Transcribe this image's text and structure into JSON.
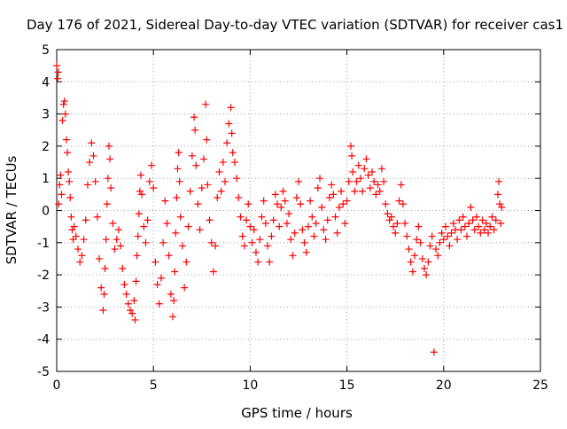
{
  "chart_data": {
    "type": "scatter",
    "title": "Day 176 of 2021, Sidereal Day-to-day VTEC variation (SDTVAR) for receiver cas1",
    "xlabel": "GPS time / hours",
    "ylabel": "SDTVAR / TECUs",
    "xlim": [
      0,
      25
    ],
    "ylim": [
      -5,
      5
    ],
    "x_ticks": [
      0,
      5,
      10,
      15,
      20,
      25
    ],
    "x_tick_labels": [
      "0",
      "5",
      "10",
      "15",
      "20",
      "25"
    ],
    "y_ticks": [
      -5,
      -4,
      -3,
      -2,
      -1,
      0,
      1,
      2,
      3,
      4,
      5
    ],
    "y_tick_labels": [
      "-5",
      "-4",
      "-3",
      "-2",
      "-1",
      "0",
      "1",
      "2",
      "3",
      "4",
      "5"
    ],
    "grid": true,
    "marker": "+",
    "marker_color": "#ff0000",
    "series": [
      {
        "name": "SDTVAR",
        "points": [
          [
            0.0,
            4.5
          ],
          [
            0.05,
            4.1
          ],
          [
            0.08,
            4.3
          ],
          [
            0.1,
            0.2
          ],
          [
            0.15,
            0.8
          ],
          [
            0.2,
            1.1
          ],
          [
            0.25,
            0.5
          ],
          [
            0.3,
            2.8
          ],
          [
            0.35,
            3.3
          ],
          [
            0.4,
            3.4
          ],
          [
            0.45,
            3.0
          ],
          [
            0.5,
            2.2
          ],
          [
            0.55,
            1.8
          ],
          [
            0.6,
            1.2
          ],
          [
            0.65,
            0.9
          ],
          [
            0.7,
            0.4
          ],
          [
            0.75,
            -0.2
          ],
          [
            0.8,
            -0.6
          ],
          [
            0.85,
            -0.9
          ],
          [
            0.9,
            -0.5
          ],
          [
            1.0,
            -0.8
          ],
          [
            1.1,
            -1.2
          ],
          [
            1.2,
            -1.6
          ],
          [
            1.3,
            -1.4
          ],
          [
            1.4,
            -0.9
          ],
          [
            1.5,
            -0.3
          ],
          [
            1.6,
            0.8
          ],
          [
            1.7,
            1.5
          ],
          [
            1.8,
            2.1
          ],
          [
            1.9,
            1.7
          ],
          [
            2.0,
            0.9
          ],
          [
            2.1,
            -0.2
          ],
          [
            2.2,
            -1.5
          ],
          [
            2.3,
            -2.4
          ],
          [
            2.4,
            -3.1
          ],
          [
            2.45,
            -2.6
          ],
          [
            2.5,
            -1.8
          ],
          [
            2.55,
            -0.9
          ],
          [
            2.6,
            0.2
          ],
          [
            2.65,
            1.0
          ],
          [
            2.7,
            2.0
          ],
          [
            2.75,
            1.6
          ],
          [
            2.8,
            0.7
          ],
          [
            2.9,
            -0.4
          ],
          [
            3.0,
            -1.2
          ],
          [
            3.1,
            -0.9
          ],
          [
            3.2,
            -0.6
          ],
          [
            3.3,
            -1.1
          ],
          [
            3.4,
            -1.8
          ],
          [
            3.5,
            -2.3
          ],
          [
            3.6,
            -2.6
          ],
          [
            3.7,
            -2.9
          ],
          [
            3.8,
            -3.1
          ],
          [
            3.9,
            -3.2
          ],
          [
            4.0,
            -2.8
          ],
          [
            4.05,
            -3.4
          ],
          [
            4.1,
            -2.2
          ],
          [
            4.15,
            -1.4
          ],
          [
            4.2,
            -0.8
          ],
          [
            4.25,
            -0.1
          ],
          [
            4.3,
            0.6
          ],
          [
            4.35,
            1.1
          ],
          [
            4.4,
            0.5
          ],
          [
            4.5,
            -0.5
          ],
          [
            4.6,
            -1.0
          ],
          [
            4.7,
            -0.3
          ],
          [
            4.8,
            0.9
          ],
          [
            4.9,
            1.4
          ],
          [
            5.0,
            0.7
          ],
          [
            5.1,
            -1.6
          ],
          [
            5.2,
            -2.3
          ],
          [
            5.3,
            -2.9
          ],
          [
            5.4,
            -2.1
          ],
          [
            5.5,
            -1.0
          ],
          [
            5.6,
            0.3
          ],
          [
            5.7,
            -0.4
          ],
          [
            5.8,
            -1.4
          ],
          [
            5.9,
            -2.6
          ],
          [
            6.0,
            -3.3
          ],
          [
            6.05,
            -2.8
          ],
          [
            6.1,
            -1.9
          ],
          [
            6.15,
            -0.7
          ],
          [
            6.2,
            0.4
          ],
          [
            6.25,
            1.3
          ],
          [
            6.3,
            1.8
          ],
          [
            6.35,
            0.9
          ],
          [
            6.4,
            -0.2
          ],
          [
            6.5,
            -1.1
          ],
          [
            6.6,
            -2.4
          ],
          [
            6.7,
            -1.6
          ],
          [
            6.8,
            -0.5
          ],
          [
            6.9,
            0.6
          ],
          [
            7.0,
            1.7
          ],
          [
            7.1,
            2.9
          ],
          [
            7.15,
            2.5
          ],
          [
            7.2,
            1.4
          ],
          [
            7.3,
            0.2
          ],
          [
            7.4,
            -0.6
          ],
          [
            7.5,
            0.7
          ],
          [
            7.6,
            1.6
          ],
          [
            7.7,
            3.3
          ],
          [
            7.75,
            2.2
          ],
          [
            7.8,
            0.8
          ],
          [
            7.9,
            -0.3
          ],
          [
            8.0,
            -1.0
          ],
          [
            8.1,
            -1.9
          ],
          [
            8.2,
            -1.1
          ],
          [
            8.3,
            0.4
          ],
          [
            8.4,
            1.2
          ],
          [
            8.5,
            0.6
          ],
          [
            8.6,
            1.5
          ],
          [
            8.7,
            0.9
          ],
          [
            8.8,
            2.1
          ],
          [
            8.9,
            2.7
          ],
          [
            9.0,
            3.2
          ],
          [
            9.05,
            2.4
          ],
          [
            9.1,
            1.8
          ],
          [
            9.2,
            1.5
          ],
          [
            9.3,
            1.0
          ],
          [
            9.4,
            0.4
          ],
          [
            9.5,
            -0.2
          ],
          [
            9.6,
            -0.8
          ],
          [
            9.7,
            -1.1
          ],
          [
            9.8,
            -0.3
          ],
          [
            9.9,
            0.2
          ],
          [
            10.0,
            -0.5
          ],
          [
            10.1,
            -1.0
          ],
          [
            10.2,
            -0.6
          ],
          [
            10.3,
            -1.3
          ],
          [
            10.4,
            -1.6
          ],
          [
            10.5,
            -0.9
          ],
          [
            10.6,
            -0.2
          ],
          [
            10.7,
            0.3
          ],
          [
            10.8,
            -0.4
          ],
          [
            10.9,
            -1.1
          ],
          [
            11.0,
            -1.6
          ],
          [
            11.1,
            -0.8
          ],
          [
            11.2,
            -0.3
          ],
          [
            11.3,
            0.5
          ],
          [
            11.4,
            0.2
          ],
          [
            11.5,
            -0.5
          ],
          [
            11.6,
            0.1
          ],
          [
            11.7,
            0.6
          ],
          [
            11.8,
            0.3
          ],
          [
            11.9,
            -0.4
          ],
          [
            12.0,
            -0.1
          ],
          [
            12.1,
            -0.9
          ],
          [
            12.2,
            -1.4
          ],
          [
            12.3,
            -0.7
          ],
          [
            12.4,
            0.4
          ],
          [
            12.5,
            0.9
          ],
          [
            12.6,
            0.2
          ],
          [
            12.7,
            -0.6
          ],
          [
            12.8,
            -1.0
          ],
          [
            12.9,
            -1.3
          ],
          [
            13.0,
            -0.5
          ],
          [
            13.1,
            0.3
          ],
          [
            13.2,
            -0.2
          ],
          [
            13.3,
            -0.8
          ],
          [
            13.4,
            -0.4
          ],
          [
            13.5,
            0.7
          ],
          [
            13.6,
            1.0
          ],
          [
            13.7,
            0.1
          ],
          [
            13.8,
            -0.6
          ],
          [
            13.9,
            -0.9
          ],
          [
            14.0,
            -0.3
          ],
          [
            14.1,
            0.4
          ],
          [
            14.2,
            0.8
          ],
          [
            14.3,
            0.5
          ],
          [
            14.4,
            -0.2
          ],
          [
            14.5,
            -0.7
          ],
          [
            14.6,
            0.1
          ],
          [
            14.7,
            0.6
          ],
          [
            14.8,
            0.2
          ],
          [
            14.9,
            -0.4
          ],
          [
            15.0,
            0.3
          ],
          [
            15.1,
            0.9
          ],
          [
            15.2,
            2.0
          ],
          [
            15.25,
            1.7
          ],
          [
            15.3,
            1.2
          ],
          [
            15.4,
            0.6
          ],
          [
            15.5,
            0.9
          ],
          [
            15.6,
            1.4
          ],
          [
            15.7,
            1.0
          ],
          [
            15.8,
            0.6
          ],
          [
            15.9,
            1.3
          ],
          [
            16.0,
            1.6
          ],
          [
            16.1,
            1.1
          ],
          [
            16.2,
            0.7
          ],
          [
            16.3,
            1.2
          ],
          [
            16.4,
            0.9
          ],
          [
            16.5,
            0.5
          ],
          [
            16.6,
            0.8
          ],
          [
            16.7,
            0.6
          ],
          [
            16.8,
            1.3
          ],
          [
            16.9,
            0.9
          ],
          [
            17.0,
            0.2
          ],
          [
            17.1,
            -0.1
          ],
          [
            17.2,
            -0.3
          ],
          [
            17.3,
            -0.2
          ],
          [
            17.4,
            -0.5
          ],
          [
            17.5,
            -0.7
          ],
          [
            17.6,
            -0.4
          ],
          [
            17.7,
            0.3
          ],
          [
            17.8,
            0.8
          ],
          [
            17.9,
            0.2
          ],
          [
            18.0,
            -0.4
          ],
          [
            18.1,
            -0.8
          ],
          [
            18.2,
            -1.2
          ],
          [
            18.3,
            -1.6
          ],
          [
            18.4,
            -1.9
          ],
          [
            18.5,
            -1.4
          ],
          [
            18.6,
            -0.9
          ],
          [
            18.7,
            -0.5
          ],
          [
            18.8,
            -1.0
          ],
          [
            18.9,
            -1.5
          ],
          [
            19.0,
            -1.8
          ],
          [
            19.1,
            -2.0
          ],
          [
            19.2,
            -1.6
          ],
          [
            19.3,
            -1.1
          ],
          [
            19.4,
            -0.8
          ],
          [
            19.5,
            -4.4
          ],
          [
            19.6,
            -1.2
          ],
          [
            19.7,
            -1.4
          ],
          [
            19.8,
            -1.0
          ],
          [
            19.9,
            -0.7
          ],
          [
            20.0,
            -0.9
          ],
          [
            20.1,
            -0.5
          ],
          [
            20.2,
            -0.8
          ],
          [
            20.3,
            -1.1
          ],
          [
            20.4,
            -0.7
          ],
          [
            20.5,
            -0.4
          ],
          [
            20.6,
            -0.6
          ],
          [
            20.7,
            -0.9
          ],
          [
            20.8,
            -0.3
          ],
          [
            20.9,
            -0.6
          ],
          [
            21.0,
            -0.2
          ],
          [
            21.1,
            -0.5
          ],
          [
            21.2,
            -0.8
          ],
          [
            21.3,
            -0.4
          ],
          [
            21.4,
            0.1
          ],
          [
            21.5,
            -0.3
          ],
          [
            21.6,
            -0.6
          ],
          [
            21.7,
            -0.2
          ],
          [
            21.8,
            -0.5
          ],
          [
            21.9,
            -0.7
          ],
          [
            22.0,
            -0.3
          ],
          [
            22.1,
            -0.6
          ],
          [
            22.2,
            -0.4
          ],
          [
            22.3,
            -0.7
          ],
          [
            22.4,
            -0.5
          ],
          [
            22.5,
            -0.2
          ],
          [
            22.6,
            -0.6
          ],
          [
            22.7,
            -0.3
          ],
          [
            22.8,
            0.5
          ],
          [
            22.85,
            0.9
          ],
          [
            22.9,
            0.2
          ],
          [
            22.95,
            -0.4
          ],
          [
            23.0,
            0.1
          ]
        ]
      }
    ]
  }
}
